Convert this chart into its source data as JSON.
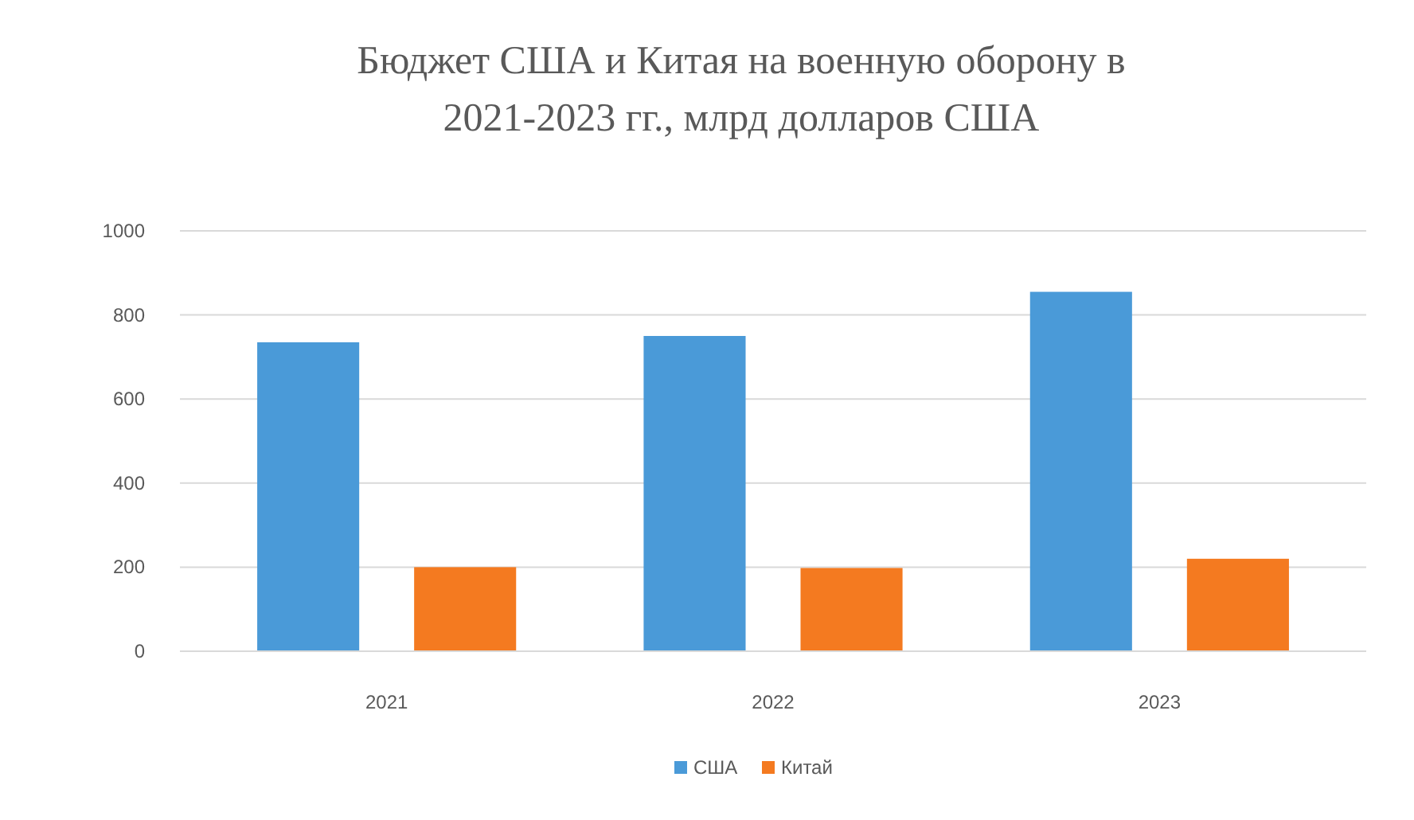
{
  "chart_data": {
    "type": "bar",
    "title": "Бюджет США и Китая на военную оборону в 2021-2023 гг., млрд долларов США",
    "categories": [
      "2021",
      "2022",
      "2023"
    ],
    "series": [
      {
        "name": "США",
        "color": "#4a9ad8",
        "values": [
          735,
          750,
          855
        ]
      },
      {
        "name": "Китай",
        "color": "#f47a20",
        "values": [
          200,
          198,
          220
        ]
      }
    ],
    "ylim": [
      0,
      1000
    ],
    "yticks": [
      0,
      200,
      400,
      600,
      800,
      1000
    ],
    "grid": "y",
    "legend": "bottom"
  }
}
